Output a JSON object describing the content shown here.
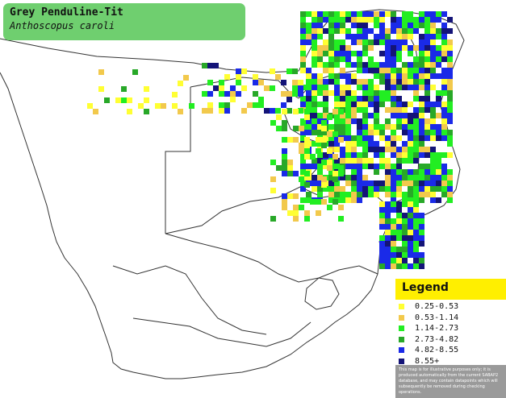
{
  "title": {
    "common_name": "Grey Penduline-Tit",
    "scientific_name": "Anthoscopus caroli"
  },
  "legend": {
    "heading": "Legend",
    "items": [
      {
        "label": "0.25-0.53",
        "color": "#ffff33"
      },
      {
        "label": "0.53-1.14",
        "color": "#f2c94c"
      },
      {
        "label": "1.14-2.73",
        "color": "#22ee22"
      },
      {
        "label": "2.73-4.82",
        "color": "#28a828"
      },
      {
        "label": "4.82-8.55",
        "color": "#1a2ae8"
      },
      {
        "label": "8.55+",
        "color": "#141478"
      }
    ],
    "note": "This map is for illustrative purposes only; it is produced automatically from the current SABAP2 database, and may contain datapoints which will subsequently be removed during checking operations."
  },
  "colors": {
    "title_bg": "#6fcf6f",
    "legend_head_bg": "#ffef00",
    "note_bg": "#9a9a9a",
    "border_line": "#333333"
  }
}
